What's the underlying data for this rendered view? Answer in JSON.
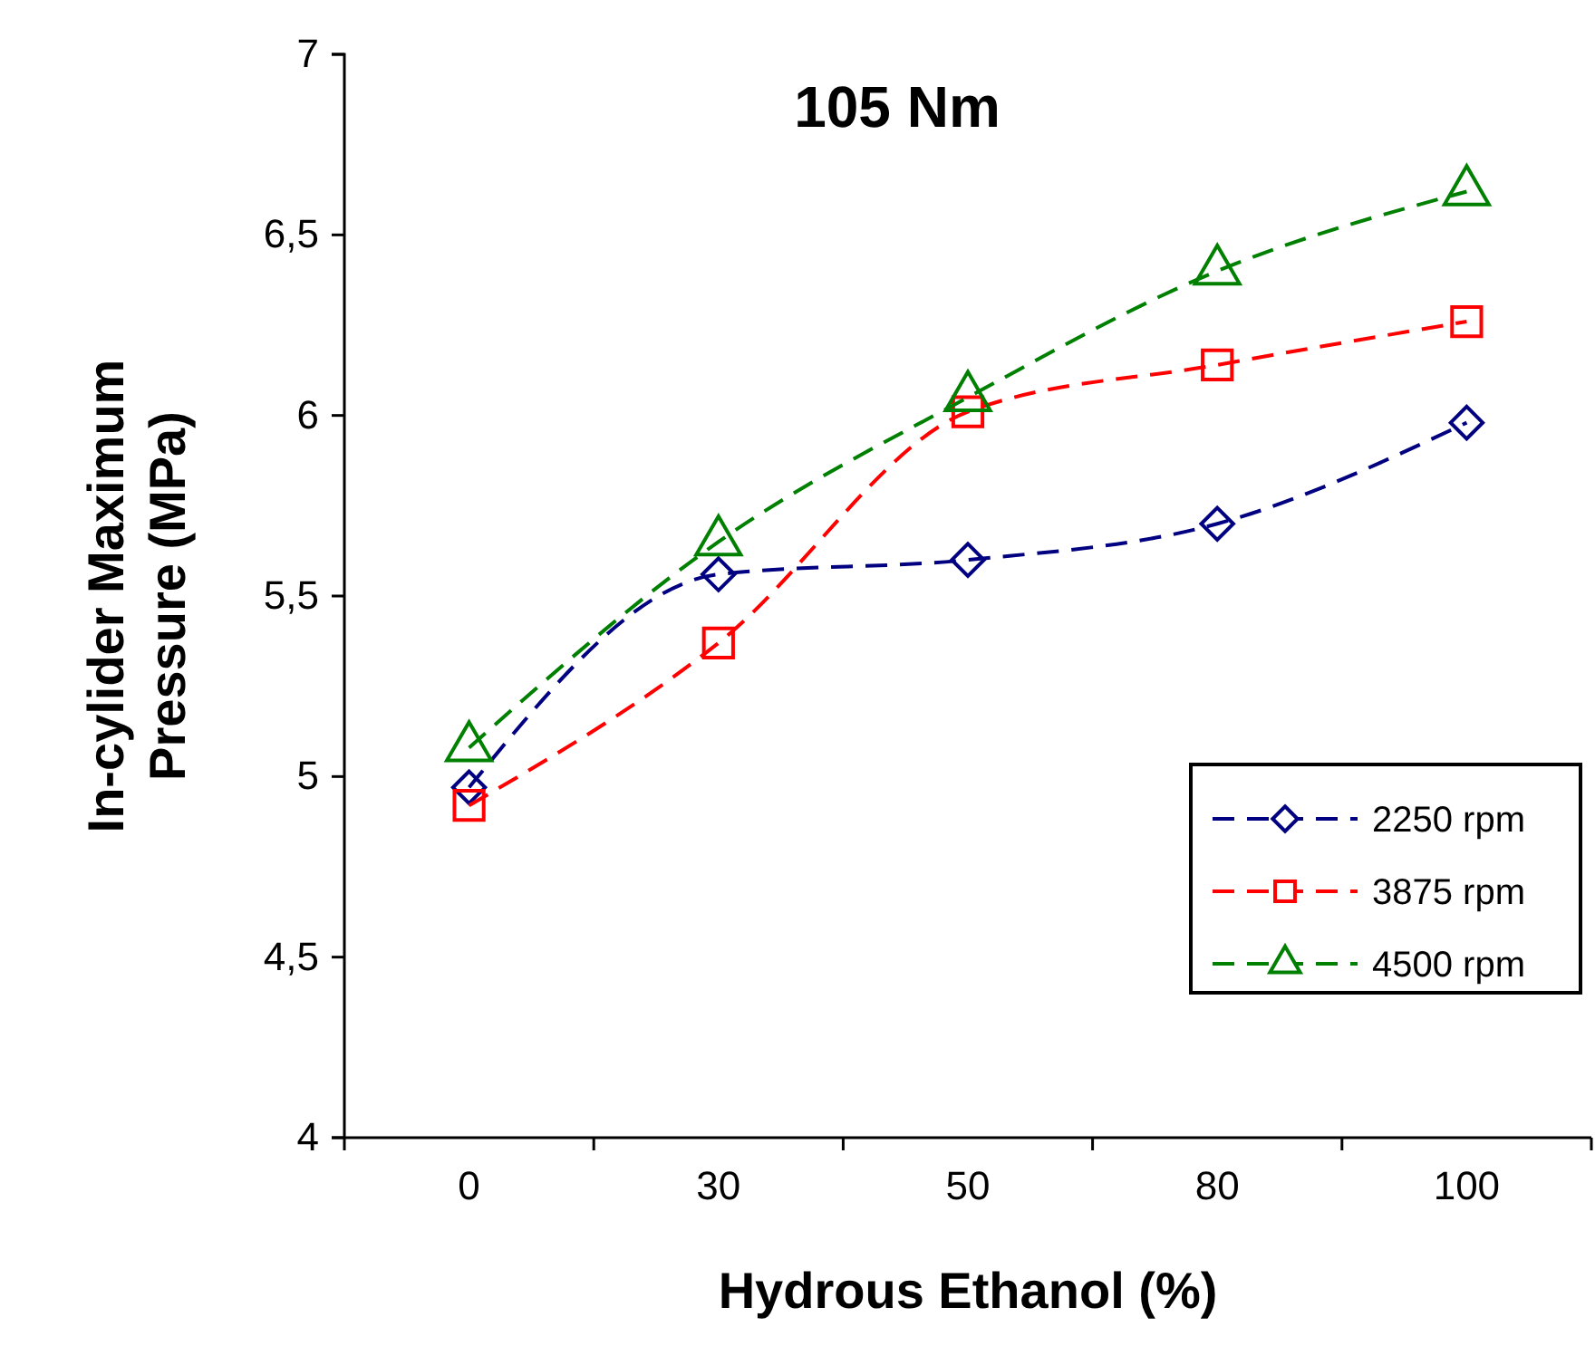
{
  "chart_data": {
    "type": "line",
    "title": "105 Nm",
    "xlabel": "Hydrous Ethanol (%)",
    "ylabel": "In-cylider Maximum Pressure (MPa)",
    "categories": [
      "0",
      "30",
      "50",
      "80",
      "100"
    ],
    "series": [
      {
        "name": "2250 rpm",
        "color": "#000080",
        "marker": "diamond",
        "values": [
          4.97,
          5.56,
          5.6,
          5.7,
          5.98
        ]
      },
      {
        "name": "3875 rpm",
        "color": "#ff0000",
        "marker": "square",
        "values": [
          4.92,
          5.37,
          6.01,
          6.14,
          6.26
        ]
      },
      {
        "name": "4500 rpm",
        "color": "#008000",
        "marker": "triangle",
        "values": [
          5.08,
          5.65,
          6.05,
          6.4,
          6.62
        ]
      }
    ],
    "ylim": [
      4,
      7
    ],
    "yticks": [
      4,
      {
        "value": 4.5,
        "label": "4,5"
      },
      5,
      {
        "value": 5.5,
        "label": "5,5"
      },
      6,
      {
        "value": 6.5,
        "label": "6,5"
      },
      7
    ],
    "grid": false,
    "legend": "bottom right",
    "line_style": "dashed"
  }
}
